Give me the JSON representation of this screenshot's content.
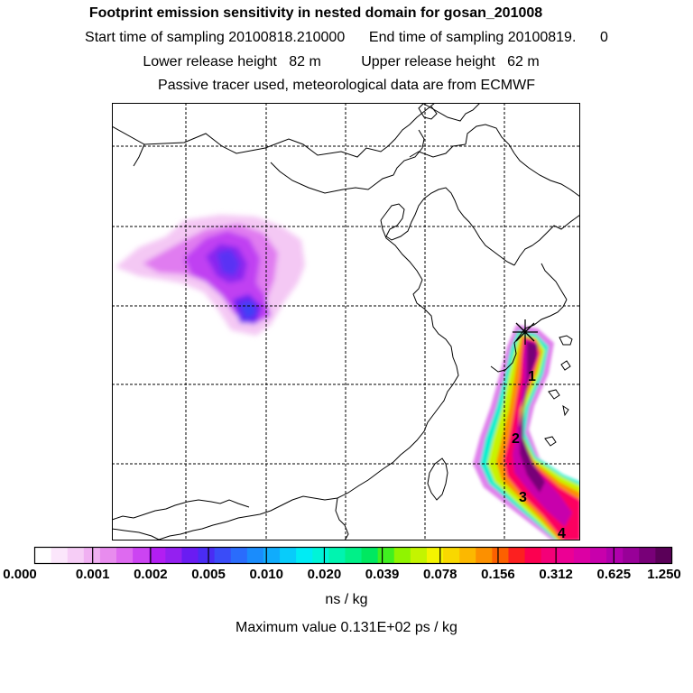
{
  "header": {
    "title": "Footprint emission sensitivity in nested domain for gosan_201008",
    "sampling_line": "Start time of sampling 20100818.210000      End time of sampling 20100819.      0",
    "release_line": "Lower release height   82 m          Upper release height   62 m",
    "tracer_line": "Passive tracer used, meteorological data are from ECMWF"
  },
  "map": {
    "trajectory_labels": [
      "1",
      "2",
      "3",
      "4"
    ],
    "receptor_marker": "receptor-star-icon"
  },
  "colorbar": {
    "tick_labels": [
      "0.000",
      "0.001",
      "0.002",
      "0.005",
      "0.010",
      "0.020",
      "0.039",
      "0.078",
      "0.156",
      "0.312",
      "0.625",
      "1.250"
    ],
    "colors": [
      "#ffffff",
      "#fbe6fb",
      "#f6cdf6",
      "#f0b0f2",
      "#e88cee",
      "#de6af0",
      "#cc44f2",
      "#b21ef2",
      "#9420f0",
      "#6a1cf2",
      "#4a2cf4",
      "#3a4cf8",
      "#2a6cfc",
      "#1a8cfc",
      "#10acfc",
      "#08ccfa",
      "#00ecf4",
      "#00f4d8",
      "#00f4b0",
      "#00f088",
      "#00e860",
      "#40f020",
      "#90f400",
      "#c4f400",
      "#f4f400",
      "#f8d800",
      "#fcb800",
      "#fc9000",
      "#fc6000",
      "#fc2020",
      "#fc0050",
      "#f40078",
      "#ec0094",
      "#dc00a4",
      "#c800ac",
      "#b000ac",
      "#980098",
      "#780078",
      "#5a0058"
    ],
    "units": "ns / kg",
    "maximum_value": "Maximum value  0.131E+02 ps / kg"
  }
}
